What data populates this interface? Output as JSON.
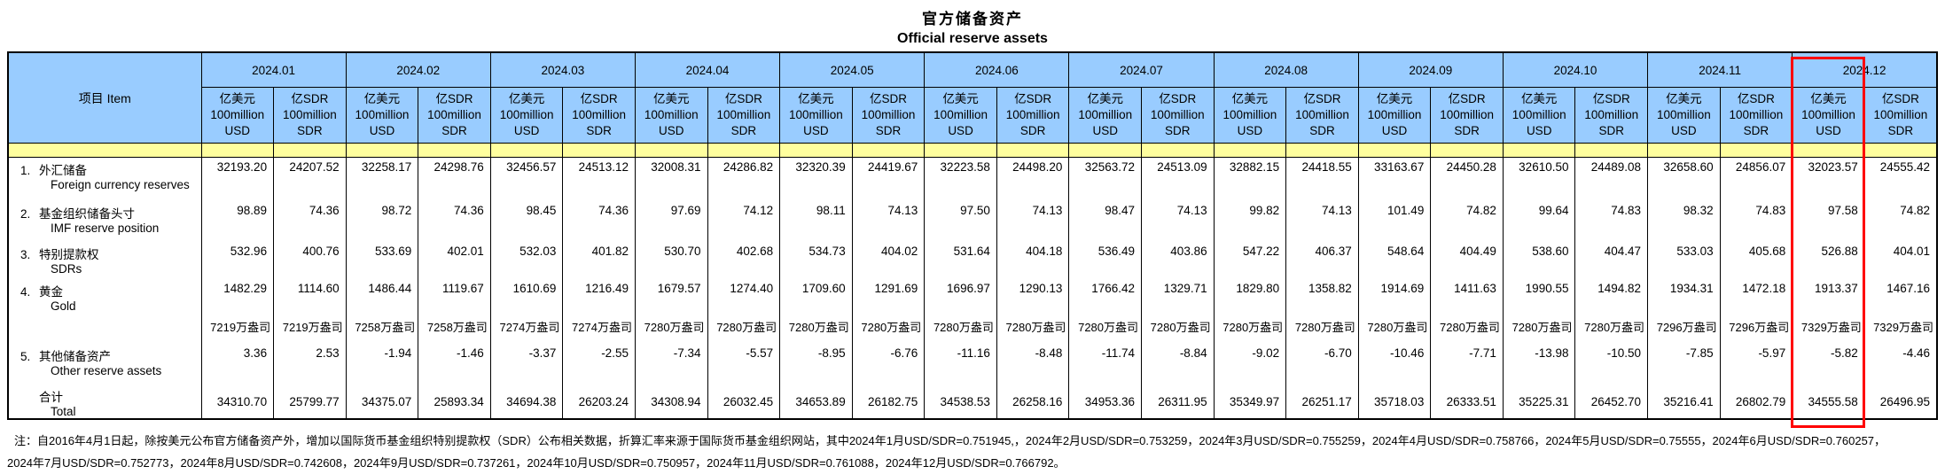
{
  "title": {
    "zh": "官方储备资产",
    "en": "Official reserve assets"
  },
  "colors": {
    "header_blue": "#99ccff",
    "band_yellow": "#ffff9e",
    "highlight_red": "#ff0000"
  },
  "table": {
    "item_header": "项目  Item",
    "unit_usd": [
      "亿美元",
      "100million",
      "USD"
    ],
    "unit_sdr": [
      "亿SDR",
      "100million",
      "SDR"
    ],
    "months": [
      "2024.01",
      "2024.02",
      "2024.03",
      "2024.04",
      "2024.05",
      "2024.06",
      "2024.07",
      "2024.08",
      "2024.09",
      "2024.10",
      "2024.11",
      "2024.12"
    ],
    "highlighted_month": "2024.12",
    "highlighted_subcolumn": "亿美元 100million USD",
    "rows": [
      {
        "key": "fx",
        "no": "1.",
        "zh": "外汇储备",
        "en": "Foreign currency reserves",
        "cells": [
          "32193.20",
          "24207.52",
          "32258.17",
          "24298.76",
          "32456.57",
          "24513.12",
          "32008.31",
          "24286.82",
          "32320.39",
          "24419.67",
          "32223.58",
          "24498.20",
          "32563.72",
          "24513.09",
          "32882.15",
          "24418.55",
          "33163.67",
          "24450.28",
          "32610.50",
          "24489.08",
          "32658.60",
          "24856.07",
          "32023.57",
          "24555.42"
        ]
      },
      {
        "key": "imf",
        "no": "2.",
        "zh": "基金组织储备头寸",
        "en": "IMF reserve position",
        "cells": [
          "98.89",
          "74.36",
          "98.72",
          "74.36",
          "98.45",
          "74.36",
          "97.69",
          "74.12",
          "98.11",
          "74.13",
          "97.50",
          "74.13",
          "98.47",
          "74.13",
          "99.82",
          "74.13",
          "101.49",
          "74.82",
          "99.64",
          "74.83",
          "98.32",
          "74.83",
          "97.58",
          "74.82"
        ]
      },
      {
        "key": "sdrs",
        "no": "3.",
        "zh": "特别提款权",
        "en": "SDRs",
        "cells": [
          "532.96",
          "400.76",
          "533.69",
          "402.01",
          "532.03",
          "401.82",
          "530.70",
          "402.68",
          "534.73",
          "404.02",
          "531.64",
          "404.18",
          "536.49",
          "403.86",
          "547.22",
          "406.37",
          "548.64",
          "404.49",
          "538.60",
          "404.47",
          "533.03",
          "405.68",
          "526.88",
          "404.01"
        ]
      },
      {
        "key": "gold",
        "no": "4.",
        "zh": "黄金",
        "en": "Gold",
        "cells": [
          "1482.29",
          "1114.60",
          "1486.44",
          "1119.67",
          "1610.69",
          "1216.49",
          "1679.57",
          "1274.40",
          "1709.60",
          "1291.69",
          "1696.97",
          "1290.13",
          "1766.42",
          "1329.71",
          "1829.80",
          "1358.82",
          "1914.69",
          "1411.63",
          "1990.55",
          "1494.82",
          "1934.31",
          "1472.18",
          "1913.37",
          "1467.16"
        ]
      },
      {
        "key": "oz",
        "no": "",
        "zh": "",
        "en": "",
        "cells": [
          "7219万盎司",
          "7219万盎司",
          "7258万盎司",
          "7258万盎司",
          "7274万盎司",
          "7274万盎司",
          "7280万盎司",
          "7280万盎司",
          "7280万盎司",
          "7280万盎司",
          "7280万盎司",
          "7280万盎司",
          "7280万盎司",
          "7280万盎司",
          "7280万盎司",
          "7280万盎司",
          "7280万盎司",
          "7280万盎司",
          "7280万盎司",
          "7280万盎司",
          "7296万盎司",
          "7296万盎司",
          "7329万盎司",
          "7329万盎司"
        ]
      },
      {
        "key": "other",
        "no": "5.",
        "zh": "其他储备资产",
        "en": "Other reserve assets",
        "cells": [
          "3.36",
          "2.53",
          "-1.94",
          "-1.46",
          "-3.37",
          "-2.55",
          "-7.34",
          "-5.57",
          "-8.95",
          "-6.76",
          "-11.16",
          "-8.48",
          "-11.74",
          "-8.84",
          "-9.02",
          "-6.70",
          "-10.46",
          "-7.71",
          "-13.98",
          "-10.50",
          "-7.85",
          "-5.97",
          "-5.82",
          "-4.46"
        ]
      },
      {
        "key": "total",
        "no": "",
        "zh": "合计",
        "en": "Total",
        "cells": [
          "34310.70",
          "25799.77",
          "34375.07",
          "25893.34",
          "34694.38",
          "26203.24",
          "34308.94",
          "26032.45",
          "34653.89",
          "26182.75",
          "34538.53",
          "26258.16",
          "34953.36",
          "26311.95",
          "35349.97",
          "26251.17",
          "35718.03",
          "26333.51",
          "35225.31",
          "26452.70",
          "35216.41",
          "26802.79",
          "34555.58",
          "26496.95"
        ]
      }
    ]
  },
  "footnote": {
    "line1": "注：自2016年4月1日起，除按美元公布官方储备资产外，增加以国际货币基金组织特别提款权（SDR）公布相关数据，折算汇率来源于国际货币基金组织网站，其中2024年1月USD/SDR=0.751945,，2024年2月USD/SDR=0.753259，2024年3月USD/SDR=0.755259，2024年4月USD/SDR=0.758766，2024年5月USD/SDR=0.75555，2024年6月USD/SDR=0.760257，",
    "line2": "2024年7月USD/SDR=0.752773，2024年8月USD/SDR=0.742608，2024年9月USD/SDR=0.737261，2024年10月USD/SDR=0.750957，2024年11月USD/SDR=0.761088，2024年12月USD/SDR=0.766792。"
  }
}
